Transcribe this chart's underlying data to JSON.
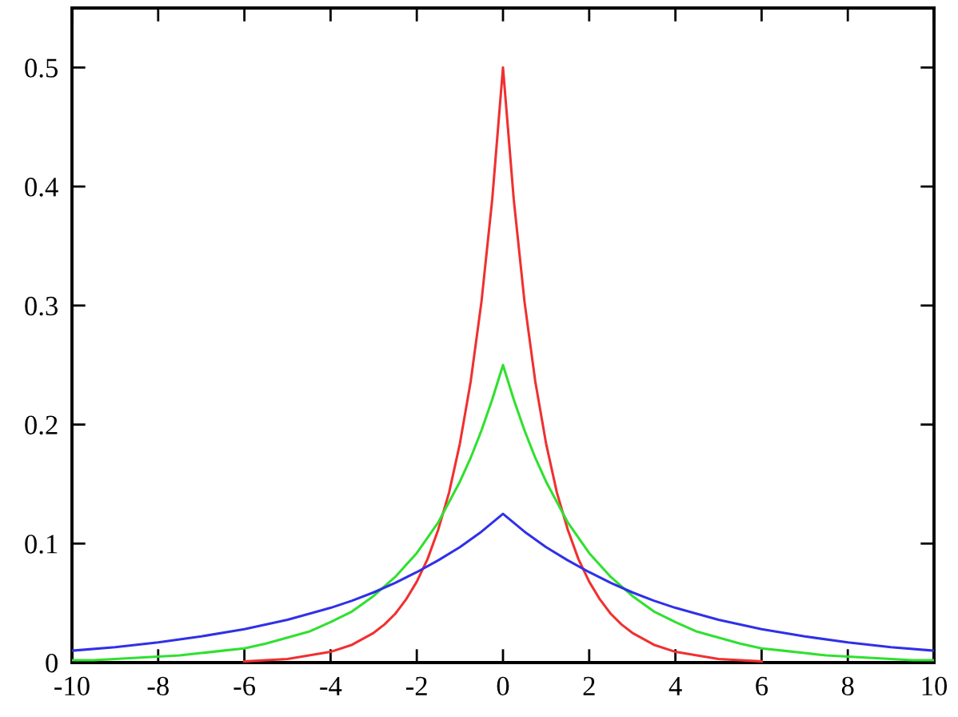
{
  "chart_data": {
    "type": "line",
    "xlim": [
      -10,
      10
    ],
    "ylim": [
      0,
      0.55
    ],
    "xticks": [
      -10,
      -8,
      -6,
      -4,
      -2,
      0,
      2,
      4,
      6,
      8,
      10
    ],
    "yticks": [
      0,
      0.1,
      0.2,
      0.3,
      0.4,
      0.5
    ],
    "series": [
      {
        "color": "#f03030",
        "x": [
          -6,
          -5.5,
          -5,
          -4.5,
          -4,
          -3.5,
          -3,
          -2.75,
          -2.5,
          -2.25,
          -2,
          -1.75,
          -1.5,
          -1.25,
          -1,
          -0.75,
          -0.5,
          -0.25,
          0,
          0.25,
          0.5,
          0.75,
          1,
          1.25,
          1.5,
          1.75,
          2,
          2.25,
          2.5,
          2.75,
          3,
          3.5,
          4,
          4.5,
          5,
          5.5,
          6
        ],
        "values": [
          0.001,
          0.002,
          0.003,
          0.006,
          0.009,
          0.015,
          0.025,
          0.032,
          0.041,
          0.053,
          0.068,
          0.087,
          0.112,
          0.143,
          0.184,
          0.236,
          0.303,
          0.389,
          0.5,
          0.389,
          0.303,
          0.236,
          0.184,
          0.143,
          0.112,
          0.087,
          0.068,
          0.053,
          0.041,
          0.032,
          0.025,
          0.015,
          0.009,
          0.006,
          0.003,
          0.002,
          0.001
        ]
      },
      {
        "color": "#30e030",
        "x": [
          -10,
          -9.5,
          -9,
          -8.5,
          -8,
          -7.5,
          -7,
          -6.5,
          -6,
          -5.5,
          -5,
          -4.5,
          -4,
          -3.5,
          -3,
          -2.5,
          -2,
          -1.5,
          -1,
          -0.75,
          -0.5,
          -0.25,
          0,
          0.25,
          0.5,
          0.75,
          1,
          1.5,
          2,
          2.5,
          3,
          3.5,
          4,
          4.5,
          5,
          5.5,
          6,
          6.5,
          7,
          7.5,
          8,
          8.5,
          9,
          9.5,
          10
        ],
        "values": [
          0.002,
          0.002,
          0.003,
          0.004,
          0.005,
          0.006,
          0.008,
          0.01,
          0.012,
          0.016,
          0.021,
          0.026,
          0.034,
          0.043,
          0.056,
          0.072,
          0.092,
          0.118,
          0.152,
          0.172,
          0.195,
          0.221,
          0.25,
          0.221,
          0.195,
          0.172,
          0.152,
          0.118,
          0.092,
          0.072,
          0.056,
          0.043,
          0.034,
          0.026,
          0.021,
          0.016,
          0.012,
          0.01,
          0.008,
          0.006,
          0.005,
          0.004,
          0.003,
          0.002,
          0.002
        ]
      },
      {
        "color": "#3030e8",
        "x": [
          -10,
          -9,
          -8,
          -7,
          -6,
          -5,
          -4,
          -3.5,
          -3,
          -2.5,
          -2,
          -1.5,
          -1,
          -0.5,
          0,
          0.5,
          1,
          1.5,
          2,
          2.5,
          3,
          3.5,
          4,
          5,
          6,
          7,
          8,
          9,
          10
        ],
        "values": [
          0.01,
          0.013,
          0.017,
          0.022,
          0.028,
          0.036,
          0.046,
          0.052,
          0.059,
          0.067,
          0.076,
          0.086,
          0.097,
          0.11,
          0.125,
          0.11,
          0.097,
          0.086,
          0.076,
          0.067,
          0.059,
          0.052,
          0.046,
          0.036,
          0.028,
          0.022,
          0.017,
          0.013,
          0.01
        ]
      }
    ]
  }
}
